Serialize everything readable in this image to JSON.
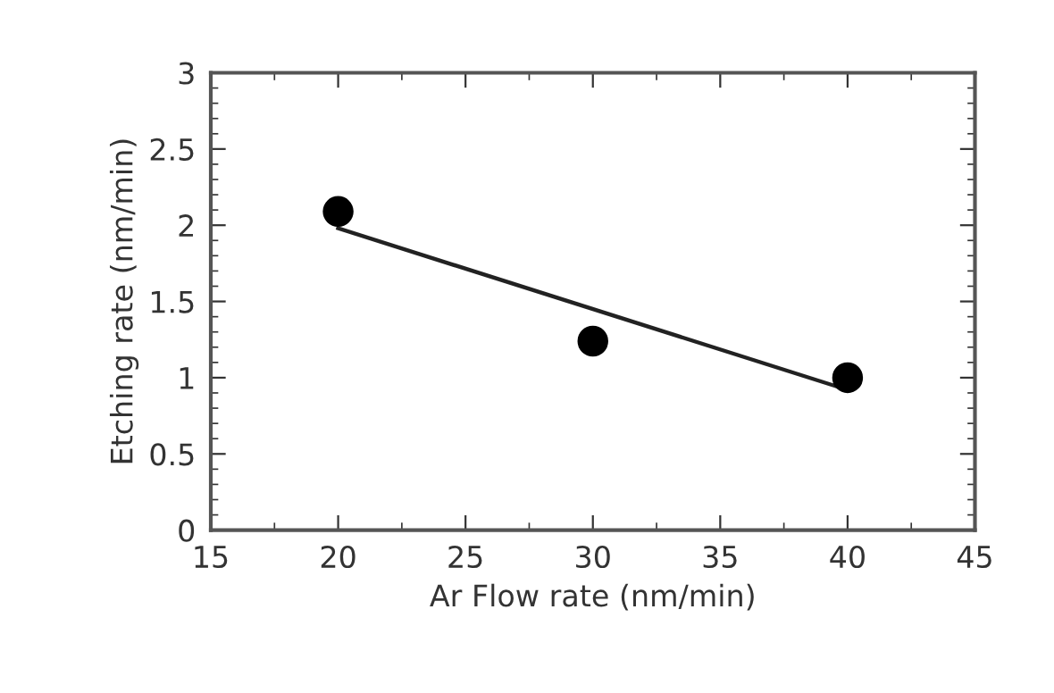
{
  "chart_data": {
    "type": "scatter",
    "xlabel": "Ar Flow rate (nm/min)",
    "ylabel": "Etching rate (nm/min)",
    "xlim": [
      15,
      45
    ],
    "xticks": [
      15,
      20,
      25,
      30,
      35,
      40,
      45
    ],
    "ylim": [
      0,
      3
    ],
    "yticks": [
      0,
      0.5,
      1,
      1.5,
      2,
      2.5,
      3
    ],
    "grid": false,
    "legend": false,
    "series": [
      {
        "color": "#000000",
        "marker": "circle",
        "x": [
          20,
          30,
          40
        ],
        "values": [
          2.09,
          1.24,
          1.0
        ]
      },
      {
        "type": "line",
        "color": "#222222",
        "marker": "none",
        "line_style": "solid",
        "x": [
          20,
          40
        ],
        "values": [
          1.98,
          0.92
        ]
      }
    ]
  }
}
